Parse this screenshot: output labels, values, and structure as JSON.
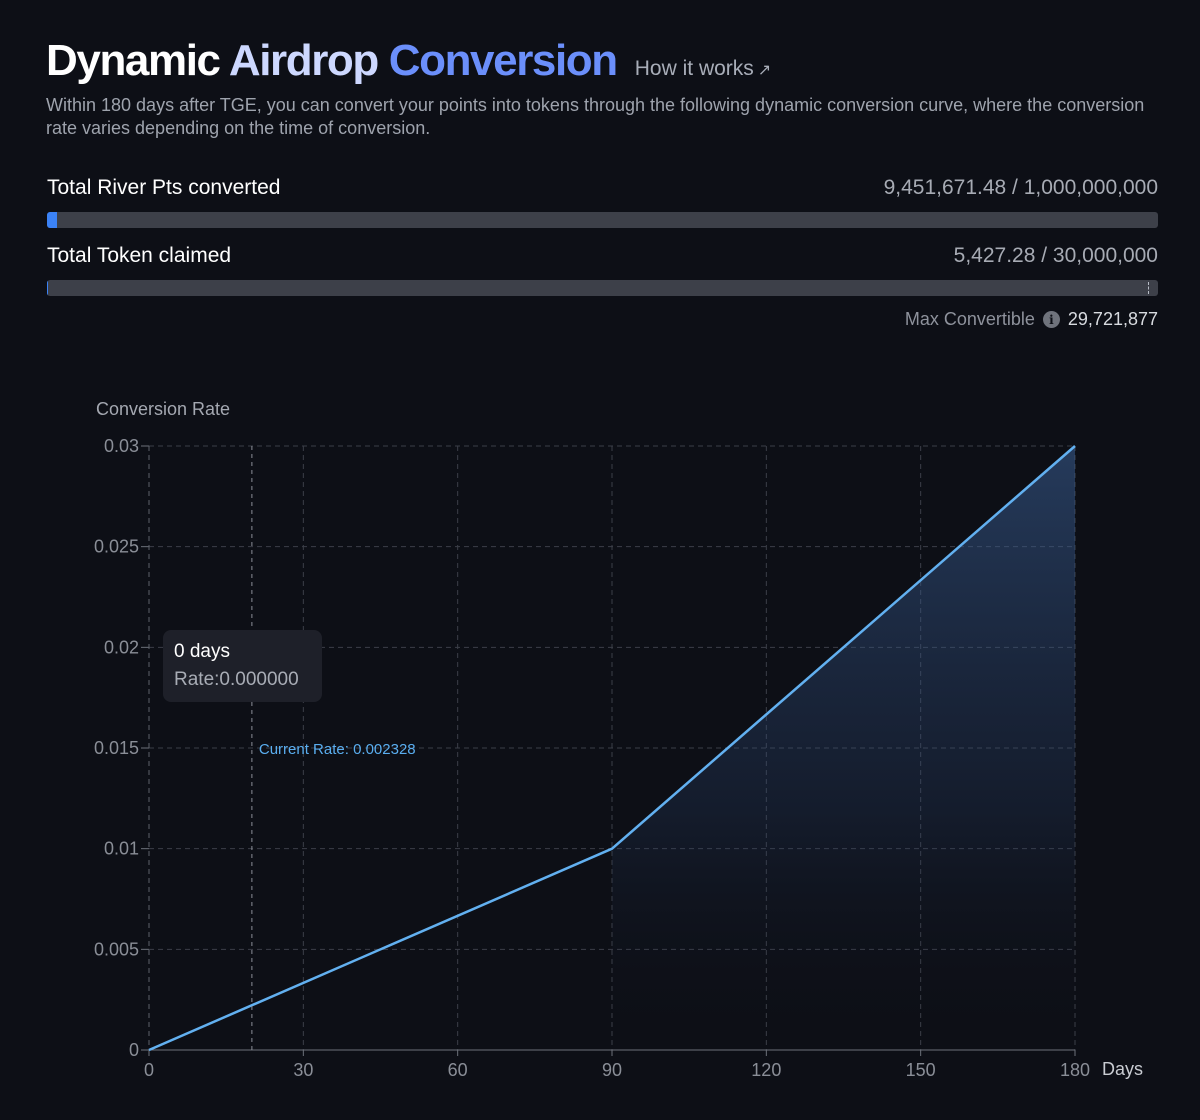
{
  "header": {
    "title_part1": "Dynamic ",
    "title_part2": "Airdrop ",
    "title_part3": "Conversion",
    "how_it_works": "How it works",
    "how_it_works_icon": "external-arrow-icon",
    "subtitle": "Within 180 days after TGE, you can convert your points into tokens through the following dynamic conversion curve, where the conversion rate varies depending on the time of conversion."
  },
  "stats": {
    "pts": {
      "label": "Total River Pts converted",
      "value": "9,451,671.48 / 1,000,000,000",
      "progress": 0.009
    },
    "tokens": {
      "label": "Total Token claimed",
      "value": "5,427.28 / 30,000,000",
      "progress": 0.0002,
      "max_marker": 0.9907
    },
    "max_convertible": {
      "label": "Max Convertible",
      "value": "29,721,877"
    }
  },
  "colors": {
    "accent": "#6b8ffb",
    "line": "#62b0f0",
    "grid": "#3a3d45"
  },
  "chart_data": {
    "type": "area",
    "ylabel": "Conversion Rate",
    "xlabel": "Days",
    "x": [
      0,
      90,
      180
    ],
    "y": [
      0,
      0.01,
      0.03
    ],
    "xlim": [
      0,
      180
    ],
    "ylim": [
      0,
      0.03
    ],
    "x_ticks": [
      0,
      30,
      60,
      90,
      120,
      150,
      180
    ],
    "x_tick_labels": [
      "0",
      "30",
      "60",
      "90",
      "120",
      "150",
      "180"
    ],
    "y_ticks": [
      0,
      0.005,
      0.01,
      0.015,
      0.02,
      0.025,
      0.03
    ],
    "y_tick_labels": [
      "0",
      "0.005",
      "0.01",
      "0.015",
      "0.02",
      "0.025",
      "0.03"
    ],
    "grid": true,
    "current": {
      "day": 20,
      "label": "Current Rate: 0.002328"
    },
    "tooltip": {
      "days": "0 days",
      "rate": "Rate:0.000000"
    }
  }
}
